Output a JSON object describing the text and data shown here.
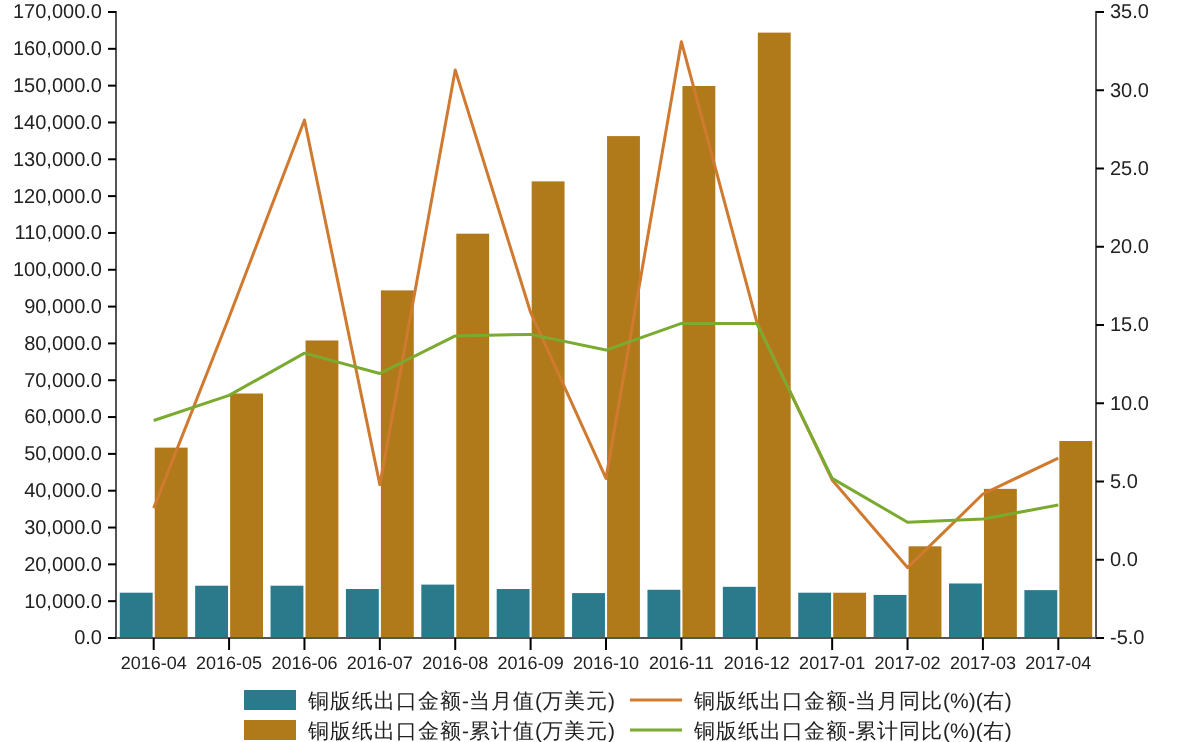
{
  "chart_data": {
    "type": "bar",
    "categories": [
      "2016-04",
      "2016-05",
      "2016-06",
      "2016-07",
      "2016-08",
      "2016-09",
      "2016-10",
      "2016-11",
      "2016-12",
      "2017-01",
      "2017-02",
      "2017-03",
      "2017-04"
    ],
    "series": [
      {
        "name": "铜版纸出口金额-当月值(万美元)",
        "color": "#2a7a8c",
        "values": [
          12300,
          14200,
          14200,
          13300,
          14500,
          13300,
          12200,
          13100,
          13900,
          12300,
          11700,
          14800,
          13000
        ]
      },
      {
        "name": "铜版纸出口金额-累计值(万美元)",
        "color": "#b07a1a",
        "values": [
          51700,
          66400,
          80800,
          94400,
          109800,
          124000,
          136300,
          149900,
          164400,
          12300,
          24900,
          40500,
          53500
        ]
      },
      {
        "name": "铜版纸出口金额-当月同比(%)(右)",
        "type": "line",
        "axis": "y2",
        "color": "#d07a30",
        "values": [
          3.3,
          15.5,
          28.1,
          4.8,
          31.3,
          15.8,
          5.2,
          33.1,
          15.2,
          5.1,
          -0.5,
          4.2,
          6.5
        ]
      },
      {
        "name": "铜版纸出口金额-累计同比(%)(右)",
        "type": "line",
        "axis": "y2",
        "color": "#7aaa30",
        "values": [
          8.9,
          10.5,
          13.2,
          11.9,
          14.3,
          14.4,
          13.4,
          15.1,
          15.1,
          5.2,
          2.4,
          2.6,
          3.5
        ]
      }
    ],
    "ylim": [
      0,
      170000
    ],
    "yticks": [
      {
        "value": 0,
        "label": "0.0"
      },
      {
        "value": 10000,
        "label": "10,000.0"
      },
      {
        "value": 20000,
        "label": "20,000.0"
      },
      {
        "value": 30000,
        "label": "30,000.0"
      },
      {
        "value": 40000,
        "label": "40,000.0"
      },
      {
        "value": 50000,
        "label": "50,000.0"
      },
      {
        "value": 60000,
        "label": "60,000.0"
      },
      {
        "value": 70000,
        "label": "70,000.0"
      },
      {
        "value": 80000,
        "label": "80,000.0"
      },
      {
        "value": 90000,
        "label": "90,000.0"
      },
      {
        "value": 100000,
        "label": "100,000.0"
      },
      {
        "value": 110000,
        "label": "110,000.0"
      },
      {
        "value": 120000,
        "label": "120,000.0"
      },
      {
        "value": 130000,
        "label": "130,000.0"
      },
      {
        "value": 140000,
        "label": "140,000.0"
      },
      {
        "value": 150000,
        "label": "150,000.0"
      },
      {
        "value": 160000,
        "label": "160,000.0"
      },
      {
        "value": 170000,
        "label": "170,000.0"
      }
    ],
    "y2lim": [
      -5,
      35
    ],
    "y2ticks": [
      {
        "value": -5,
        "label": "-5.0"
      },
      {
        "value": 0,
        "label": "0.0"
      },
      {
        "value": 5,
        "label": "5.0"
      },
      {
        "value": 10,
        "label": "10.0"
      },
      {
        "value": 15,
        "label": "15.0"
      },
      {
        "value": 20,
        "label": "20.0"
      },
      {
        "value": 25,
        "label": "25.0"
      },
      {
        "value": 30,
        "label": "30.0"
      },
      {
        "value": 35,
        "label": "35.0"
      }
    ],
    "legend": "bottom",
    "grid": false
  }
}
